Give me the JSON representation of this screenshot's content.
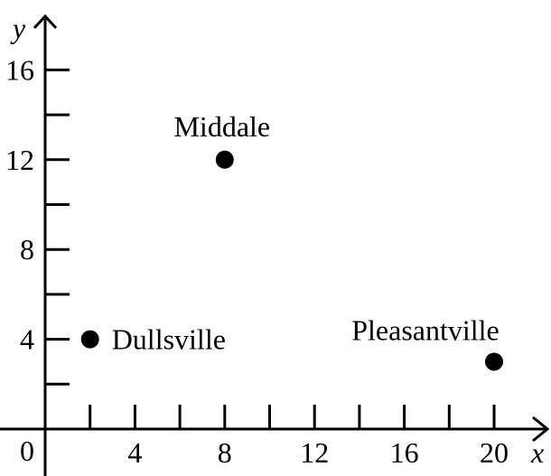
{
  "chart_data": {
    "type": "scatter",
    "title": "",
    "xlabel": "x",
    "ylabel": "y",
    "xlim": [
      0,
      22
    ],
    "ylim": [
      0,
      18
    ],
    "x_minor_tick_step": 2,
    "y_minor_tick_step": 2,
    "x_ticks": [
      4,
      8,
      12,
      16,
      20
    ],
    "y_ticks": [
      4,
      8,
      12,
      16
    ],
    "origin_label": "0",
    "grid": false,
    "point_color": "#000000",
    "points": [
      {
        "label": "Dullsville",
        "x": 2,
        "y": 4
      },
      {
        "label": "Middale",
        "x": 8,
        "y": 12
      },
      {
        "label": "Pleasantville",
        "x": 20,
        "y": 3
      }
    ]
  }
}
